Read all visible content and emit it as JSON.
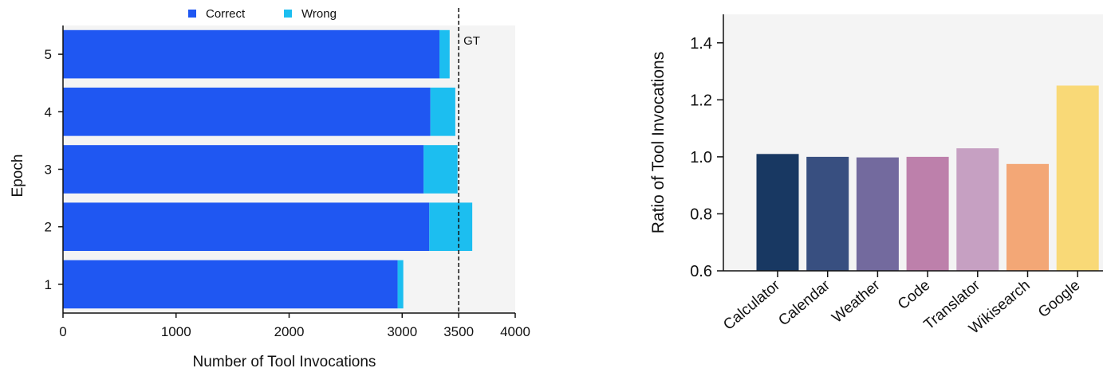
{
  "chart_data": [
    {
      "type": "bar",
      "orientation": "horizontal",
      "stacked": true,
      "categories": [
        "1",
        "2",
        "3",
        "4",
        "5"
      ],
      "series": [
        {
          "name": "Correct",
          "values": [
            2960,
            3240,
            3190,
            3250,
            3330
          ],
          "color": "#1f57f2"
        },
        {
          "name": "Wrong",
          "values": [
            50,
            380,
            300,
            220,
            90
          ],
          "color": "#1cbef0"
        }
      ],
      "xlabel": "Number of Tool Invocations",
      "ylabel": "Epoch",
      "xlim": [
        0,
        4000
      ],
      "xticks": [
        "0",
        "1000",
        "2000",
        "3000",
        "3500",
        "4000"
      ],
      "xtick_values": [
        0,
        1000,
        2000,
        3000,
        3500,
        4000
      ],
      "reference_line": {
        "value": 3500,
        "label": "GT",
        "style": "dashed"
      },
      "legend": "top-center",
      "background": "#f4f4f4",
      "grid": false
    },
    {
      "type": "bar",
      "categories": [
        "Calculator",
        "Calendar",
        "Weather",
        "Code",
        "Translator",
        "Wikisearch",
        "Google"
      ],
      "values": [
        1.01,
        1.0,
        0.998,
        1.0,
        1.03,
        0.975,
        1.25
      ],
      "colors": [
        "#183862",
        "#384f80",
        "#736a9e",
        "#bd80ab",
        "#c6a0c2",
        "#f3a776",
        "#f9d977"
      ],
      "ylabel": "Ratio of Tool Invocations",
      "ylim": [
        0.6,
        1.5
      ],
      "yticks": [
        "0.6",
        "0.8",
        "1.0",
        "1.2",
        "1.4"
      ],
      "ytick_values": [
        0.6,
        0.8,
        1.0,
        1.2,
        1.4
      ],
      "background": "#f4f4f4",
      "grid": false
    }
  ]
}
